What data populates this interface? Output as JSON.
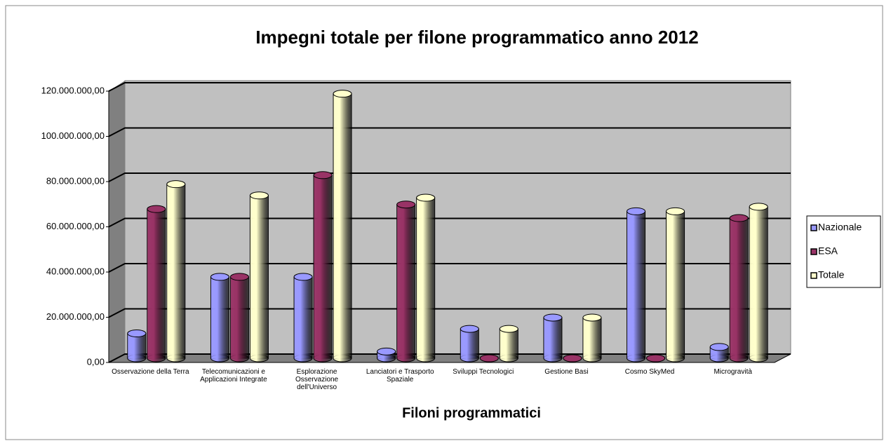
{
  "chart_data": {
    "type": "bar",
    "title": "Impegni totale per filone programmatico anno 2012",
    "x_label": "Filoni programmatici",
    "categories": [
      "Osservazione della Terra",
      "Telecomunicazioni e Applicazioni Integrate",
      "Esplorazione Osservazione dell'Universo",
      "Lanciatori e Trasporto Spaziale",
      "Sviluppi Tecnologici",
      "Gestione Basi",
      "Cosmo SkyMed",
      "Microgravità"
    ],
    "series": [
      {
        "name": "Nazionale",
        "color": "#9999ff",
        "values": [
          11000000,
          36000000,
          36000000,
          3000000,
          13000000,
          18000000,
          65000000,
          5000000
        ]
      },
      {
        "name": "ESA",
        "color": "#993366",
        "values": [
          66000000,
          36000000,
          81000000,
          68000000,
          0,
          0,
          0,
          62000000
        ]
      },
      {
        "name": "Totale",
        "color": "#ffffcc",
        "values": [
          77000000,
          72000000,
          117000000,
          71000000,
          13000000,
          18000000,
          65000000,
          67000000
        ]
      }
    ],
    "ylim": [
      0,
      120000000
    ],
    "yticks": [
      {
        "value": 0,
        "label": "0,00"
      },
      {
        "value": 20000000,
        "label": "20.000.000,00"
      },
      {
        "value": 40000000,
        "label": "40.000.000,00"
      },
      {
        "value": 60000000,
        "label": "60.000.000,00"
      },
      {
        "value": 80000000,
        "label": "80.000.000,00"
      },
      {
        "value": 100000000,
        "label": "100.000.000,00"
      },
      {
        "value": 120000000,
        "label": "120.000.000,00"
      }
    ],
    "grid": true,
    "legend": "right"
  }
}
